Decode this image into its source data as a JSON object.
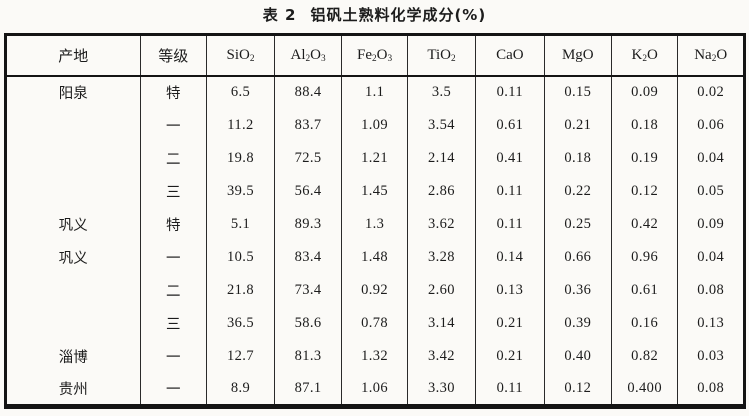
{
  "page": {
    "bg_color": "#fbfaf7",
    "text_color": "#1c1c1c",
    "border_color": "#141414"
  },
  "title": {
    "prefix": "表 2",
    "text": "铝矾土熟料化学成分(%)"
  },
  "table": {
    "col_widths_pct": [
      18.2,
      9.0,
      9.2,
      9.1,
      8.9,
      9.2,
      9.3,
      9.1,
      9.0,
      9.0
    ],
    "columns": [
      {
        "key": "origin",
        "segments": [
          {
            "text": "产地"
          }
        ]
      },
      {
        "key": "grade",
        "segments": [
          {
            "text": "等级"
          }
        ]
      },
      {
        "key": "SiO2",
        "segments": [
          {
            "text": "SiO"
          },
          {
            "text": "2",
            "sub": true
          }
        ]
      },
      {
        "key": "Al2O3",
        "segments": [
          {
            "text": "Al"
          },
          {
            "text": "2",
            "sub": true
          },
          {
            "text": "O"
          },
          {
            "text": "3",
            "sub": true
          }
        ]
      },
      {
        "key": "Fe2O3",
        "segments": [
          {
            "text": "Fe"
          },
          {
            "text": "2",
            "sub": true
          },
          {
            "text": "O"
          },
          {
            "text": "3",
            "sub": true
          }
        ]
      },
      {
        "key": "TiO2",
        "segments": [
          {
            "text": "TiO"
          },
          {
            "text": "2",
            "sub": true
          }
        ]
      },
      {
        "key": "CaO",
        "segments": [
          {
            "text": "CaO"
          }
        ]
      },
      {
        "key": "MgO",
        "segments": [
          {
            "text": "MgO"
          }
        ]
      },
      {
        "key": "K2O",
        "segments": [
          {
            "text": "K"
          },
          {
            "text": "2",
            "sub": true
          },
          {
            "text": "O"
          }
        ]
      },
      {
        "key": "Na2O",
        "segments": [
          {
            "text": "Na"
          },
          {
            "text": "2",
            "sub": true
          },
          {
            "text": "O"
          }
        ]
      }
    ],
    "rows": [
      {
        "origin": "阳泉",
        "grade": "特",
        "values": [
          "6.5",
          "88.4",
          "1.1",
          "3.5",
          "0.11",
          "0.15",
          "0.09",
          "0.02"
        ]
      },
      {
        "origin": "",
        "grade": "一",
        "values": [
          "11.2",
          "83.7",
          "1.09",
          "3.54",
          "0.61",
          "0.21",
          "0.18",
          "0.06"
        ]
      },
      {
        "origin": "",
        "grade": "二",
        "values": [
          "19.8",
          "72.5",
          "1.21",
          "2.14",
          "0.41",
          "0.18",
          "0.19",
          "0.04"
        ]
      },
      {
        "origin": "",
        "grade": "三",
        "values": [
          "39.5",
          "56.4",
          "1.45",
          "2.86",
          "0.11",
          "0.22",
          "0.12",
          "0.05"
        ]
      },
      {
        "origin": "巩义",
        "grade": "特",
        "values": [
          "5.1",
          "89.3",
          "1.3",
          "3.62",
          "0.11",
          "0.25",
          "0.42",
          "0.09"
        ]
      },
      {
        "origin": "巩义",
        "grade": "一",
        "values": [
          "10.5",
          "83.4",
          "1.48",
          "3.28",
          "0.14",
          "0.66",
          "0.96",
          "0.04"
        ]
      },
      {
        "origin": "",
        "grade": "二",
        "values": [
          "21.8",
          "73.4",
          "0.92",
          "2.60",
          "0.13",
          "0.36",
          "0.61",
          "0.08"
        ]
      },
      {
        "origin": "",
        "grade": "三",
        "values": [
          "36.5",
          "58.6",
          "0.78",
          "3.14",
          "0.21",
          "0.39",
          "0.16",
          "0.13"
        ]
      },
      {
        "origin": "淄博",
        "grade": "一",
        "values": [
          "12.7",
          "81.3",
          "1.32",
          "3.42",
          "0.21",
          "0.40",
          "0.82",
          "0.03"
        ]
      },
      {
        "origin": "贵州",
        "grade": "一",
        "values": [
          "8.9",
          "87.1",
          "1.06",
          "3.30",
          "0.11",
          "0.12",
          "0.400",
          "0.08"
        ]
      }
    ]
  }
}
